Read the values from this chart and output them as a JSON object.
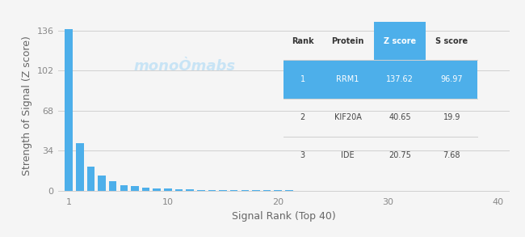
{
  "bar_color": "#4DAFEA",
  "background_color": "#f5f5f5",
  "grid_color": "#d0d0d0",
  "ylabel": "Strength of Signal (Z score)",
  "xlabel": "Signal Rank (Top 40)",
  "yticks": [
    0,
    34,
    68,
    102,
    136
  ],
  "xticks": [
    1,
    10,
    20,
    30,
    40
  ],
  "xlim": [
    0.0,
    41
  ],
  "ylim": [
    -3,
    148
  ],
  "n_bars": 40,
  "bar_values": [
    137.62,
    40.65,
    20.75,
    13.0,
    8.0,
    5.0,
    3.8,
    2.8,
    2.2,
    1.7,
    1.4,
    1.1,
    0.9,
    0.75,
    0.65,
    0.55,
    0.48,
    0.42,
    0.37,
    0.32,
    0.28,
    0.25,
    0.22,
    0.19,
    0.17,
    0.15,
    0.13,
    0.12,
    0.11,
    0.1,
    0.09,
    0.08,
    0.07,
    0.07,
    0.06,
    0.06,
    0.05,
    0.05,
    0.04,
    0.04
  ],
  "table_header_bg": "#4DAFEA",
  "table_row1_bg": "#4DAFEA",
  "table_data": [
    [
      "Rank",
      "Protein",
      "Z score",
      "S score"
    ],
    [
      "1",
      "RRM1",
      "137.62",
      "96.97"
    ],
    [
      "2",
      "KIF20A",
      "40.65",
      "19.9"
    ],
    [
      "3",
      "IDE",
      "20.75",
      "7.68"
    ]
  ],
  "watermark_text": "monoÒmabs",
  "watermark_color": "#c8e4f5",
  "fig_bg": "#f5f5f5",
  "tick_color": "#888888",
  "label_color": "#666666"
}
